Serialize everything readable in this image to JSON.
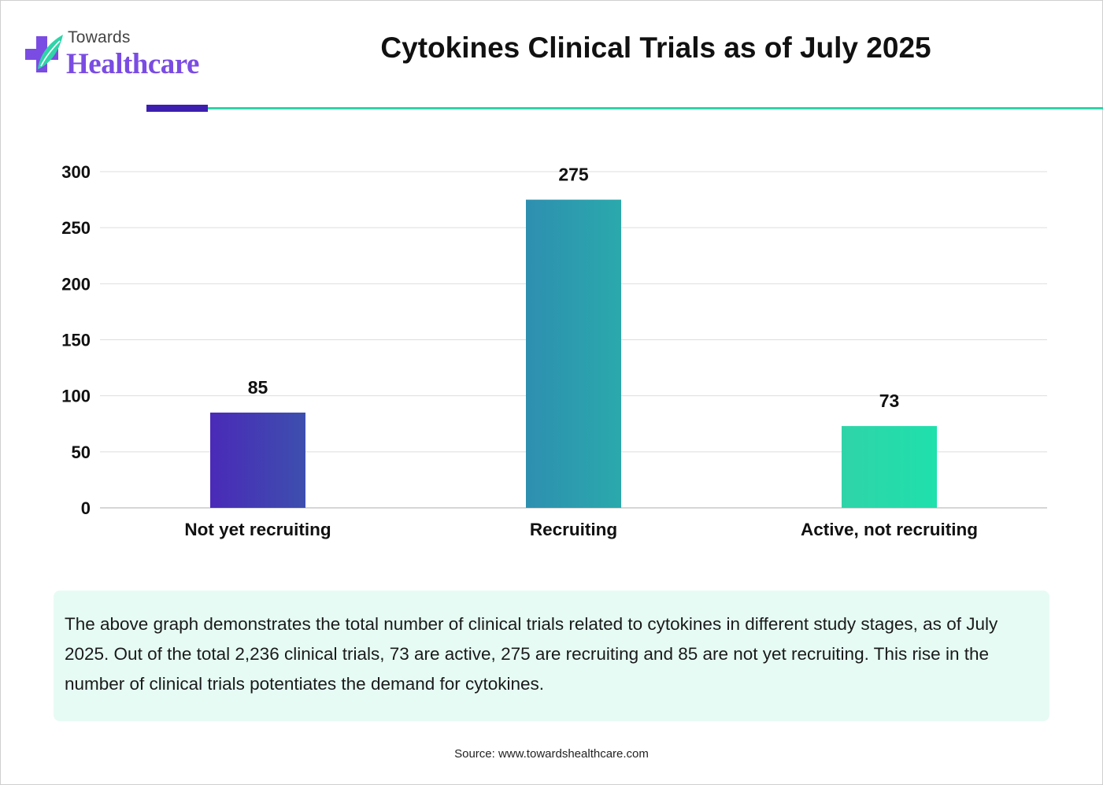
{
  "brand": {
    "top": "Towards",
    "bottom": "Healthcare"
  },
  "colors": {
    "accent_dark": "#3d1fb0",
    "accent_teal": "#2fd4a8",
    "brand_purple": "#7a4ce3",
    "note_bg": "#e6fbf4"
  },
  "chart_data": {
    "type": "bar",
    "title": "Cytokines Clinical Trials as of July 2025",
    "xlabel": "",
    "ylabel": "",
    "ylim": [
      0,
      300
    ],
    "yticks": [
      0,
      50,
      100,
      150,
      200,
      250,
      300
    ],
    "grid": true,
    "categories": [
      "Not yet recruiting",
      "Recruiting",
      "Active, not recruiting"
    ],
    "values": [
      85,
      275,
      73
    ],
    "data_labels": [
      "85",
      "275",
      "73"
    ],
    "bar_colors": [
      [
        "#4a2ab8",
        "#3d4fae"
      ],
      [
        "#2e8fb0",
        "#2aa9ac"
      ],
      [
        "#2fd4a8",
        "#1fe0ac"
      ]
    ]
  },
  "description": "The above graph demonstrates the total number of clinical trials related to cytokines in different study stages, as of July 2025. Out of the total 2,236 clinical trials, 73 are active, 275 are recruiting and 85 are not yet recruiting. This rise in the number of clinical trials potentiates the demand for cytokines.",
  "source": "Source: www.towardshealthcare.com"
}
